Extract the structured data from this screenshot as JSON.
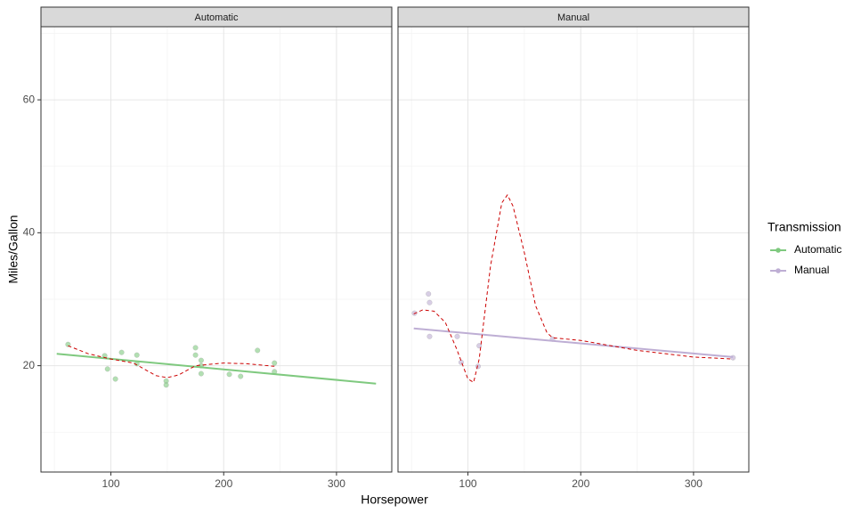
{
  "chart_data": {
    "type": "scatter",
    "xlabel": "Horsepower",
    "ylabel": "Miles/Gallon",
    "legend": {
      "title": "Transmission",
      "position": "right"
    },
    "xlim": [
      38,
      349
    ],
    "ylim": [
      4,
      71
    ],
    "xticks": [
      100,
      200,
      300
    ],
    "yticks": [
      20,
      40,
      60
    ],
    "xticks_minor": [
      50,
      150,
      250
    ],
    "yticks_minor": [
      10,
      30,
      50,
      70
    ],
    "grid": true,
    "smooth_color": "#cc0000",
    "panels": [
      {
        "title": "Automatic",
        "color": "#7fc97f",
        "points": {
          "x": [
            62,
            94.5,
            97,
            104,
            109.5,
            123,
            123,
            149,
            149,
            175,
            175,
            180,
            180,
            180,
            205,
            215,
            230,
            245,
            245
          ],
          "y": [
            23.2,
            21.5,
            19.5,
            18.0,
            22.0,
            21.6,
            20.3,
            17.7,
            17.1,
            22.7,
            21.6,
            20.8,
            20.0,
            18.8,
            18.7,
            18.4,
            22.3,
            20.4,
            19.1
          ]
        },
        "fit": {
          "x": [
            52,
            335
          ],
          "y": [
            21.8,
            17.3
          ]
        },
        "smooth": {
          "x": [
            62,
            80,
            100,
            120,
            140,
            150,
            160,
            175,
            200,
            220,
            245
          ],
          "y": [
            23.0,
            21.8,
            21.0,
            20.4,
            18.5,
            18.2,
            18.6,
            20.0,
            20.4,
            20.3,
            19.9
          ]
        }
      },
      {
        "title": "Manual",
        "color": "#beaed4",
        "points": {
          "x": [
            52.6,
            65,
            66,
            66,
            90.5,
            94,
            109,
            110,
            175,
            335
          ],
          "y": [
            27.9,
            30.8,
            29.5,
            24.4,
            24.4,
            20.5,
            19.9,
            23.0,
            24.0,
            21.2
          ]
        },
        "fit": {
          "x": [
            52,
            335
          ],
          "y": [
            25.6,
            21.3
          ]
        },
        "smooth": {
          "x": [
            52,
            60,
            70,
            80,
            90,
            100,
            105,
            110,
            120,
            130,
            135,
            140,
            150,
            160,
            170,
            175,
            200,
            250,
            300,
            335
          ],
          "y": [
            27.8,
            28.4,
            28.2,
            26.5,
            22.5,
            18.0,
            17.5,
            21.0,
            35.0,
            44.5,
            45.7,
            44.0,
            37.0,
            29.0,
            25.0,
            24.2,
            23.8,
            22.3,
            21.3,
            21.0
          ]
        }
      }
    ]
  }
}
